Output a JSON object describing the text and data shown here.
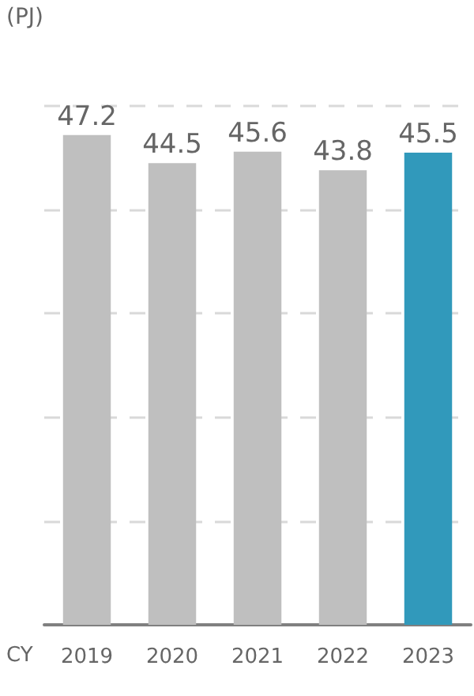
{
  "chart_data": {
    "type": "bar",
    "ylabel": "(PJ)",
    "xlabel": "CY",
    "categories": [
      "2019",
      "2020",
      "2021",
      "2022",
      "2023"
    ],
    "values": [
      47.2,
      44.5,
      45.6,
      43.8,
      45.5
    ],
    "colors": [
      "#bfbfbf",
      "#bfbfbf",
      "#bfbfbf",
      "#bfbfbf",
      "#3199bb"
    ],
    "ylim": [
      0,
      50
    ],
    "yticks": [
      {
        "value": 10,
        "label": null
      },
      {
        "value": 20,
        "label": null
      },
      {
        "value": 30,
        "label": null
      },
      {
        "value": 40,
        "label": null
      },
      {
        "value": 50,
        "label": null
      }
    ],
    "grid": "y",
    "data_labels": true,
    "tick_labels": "x"
  }
}
